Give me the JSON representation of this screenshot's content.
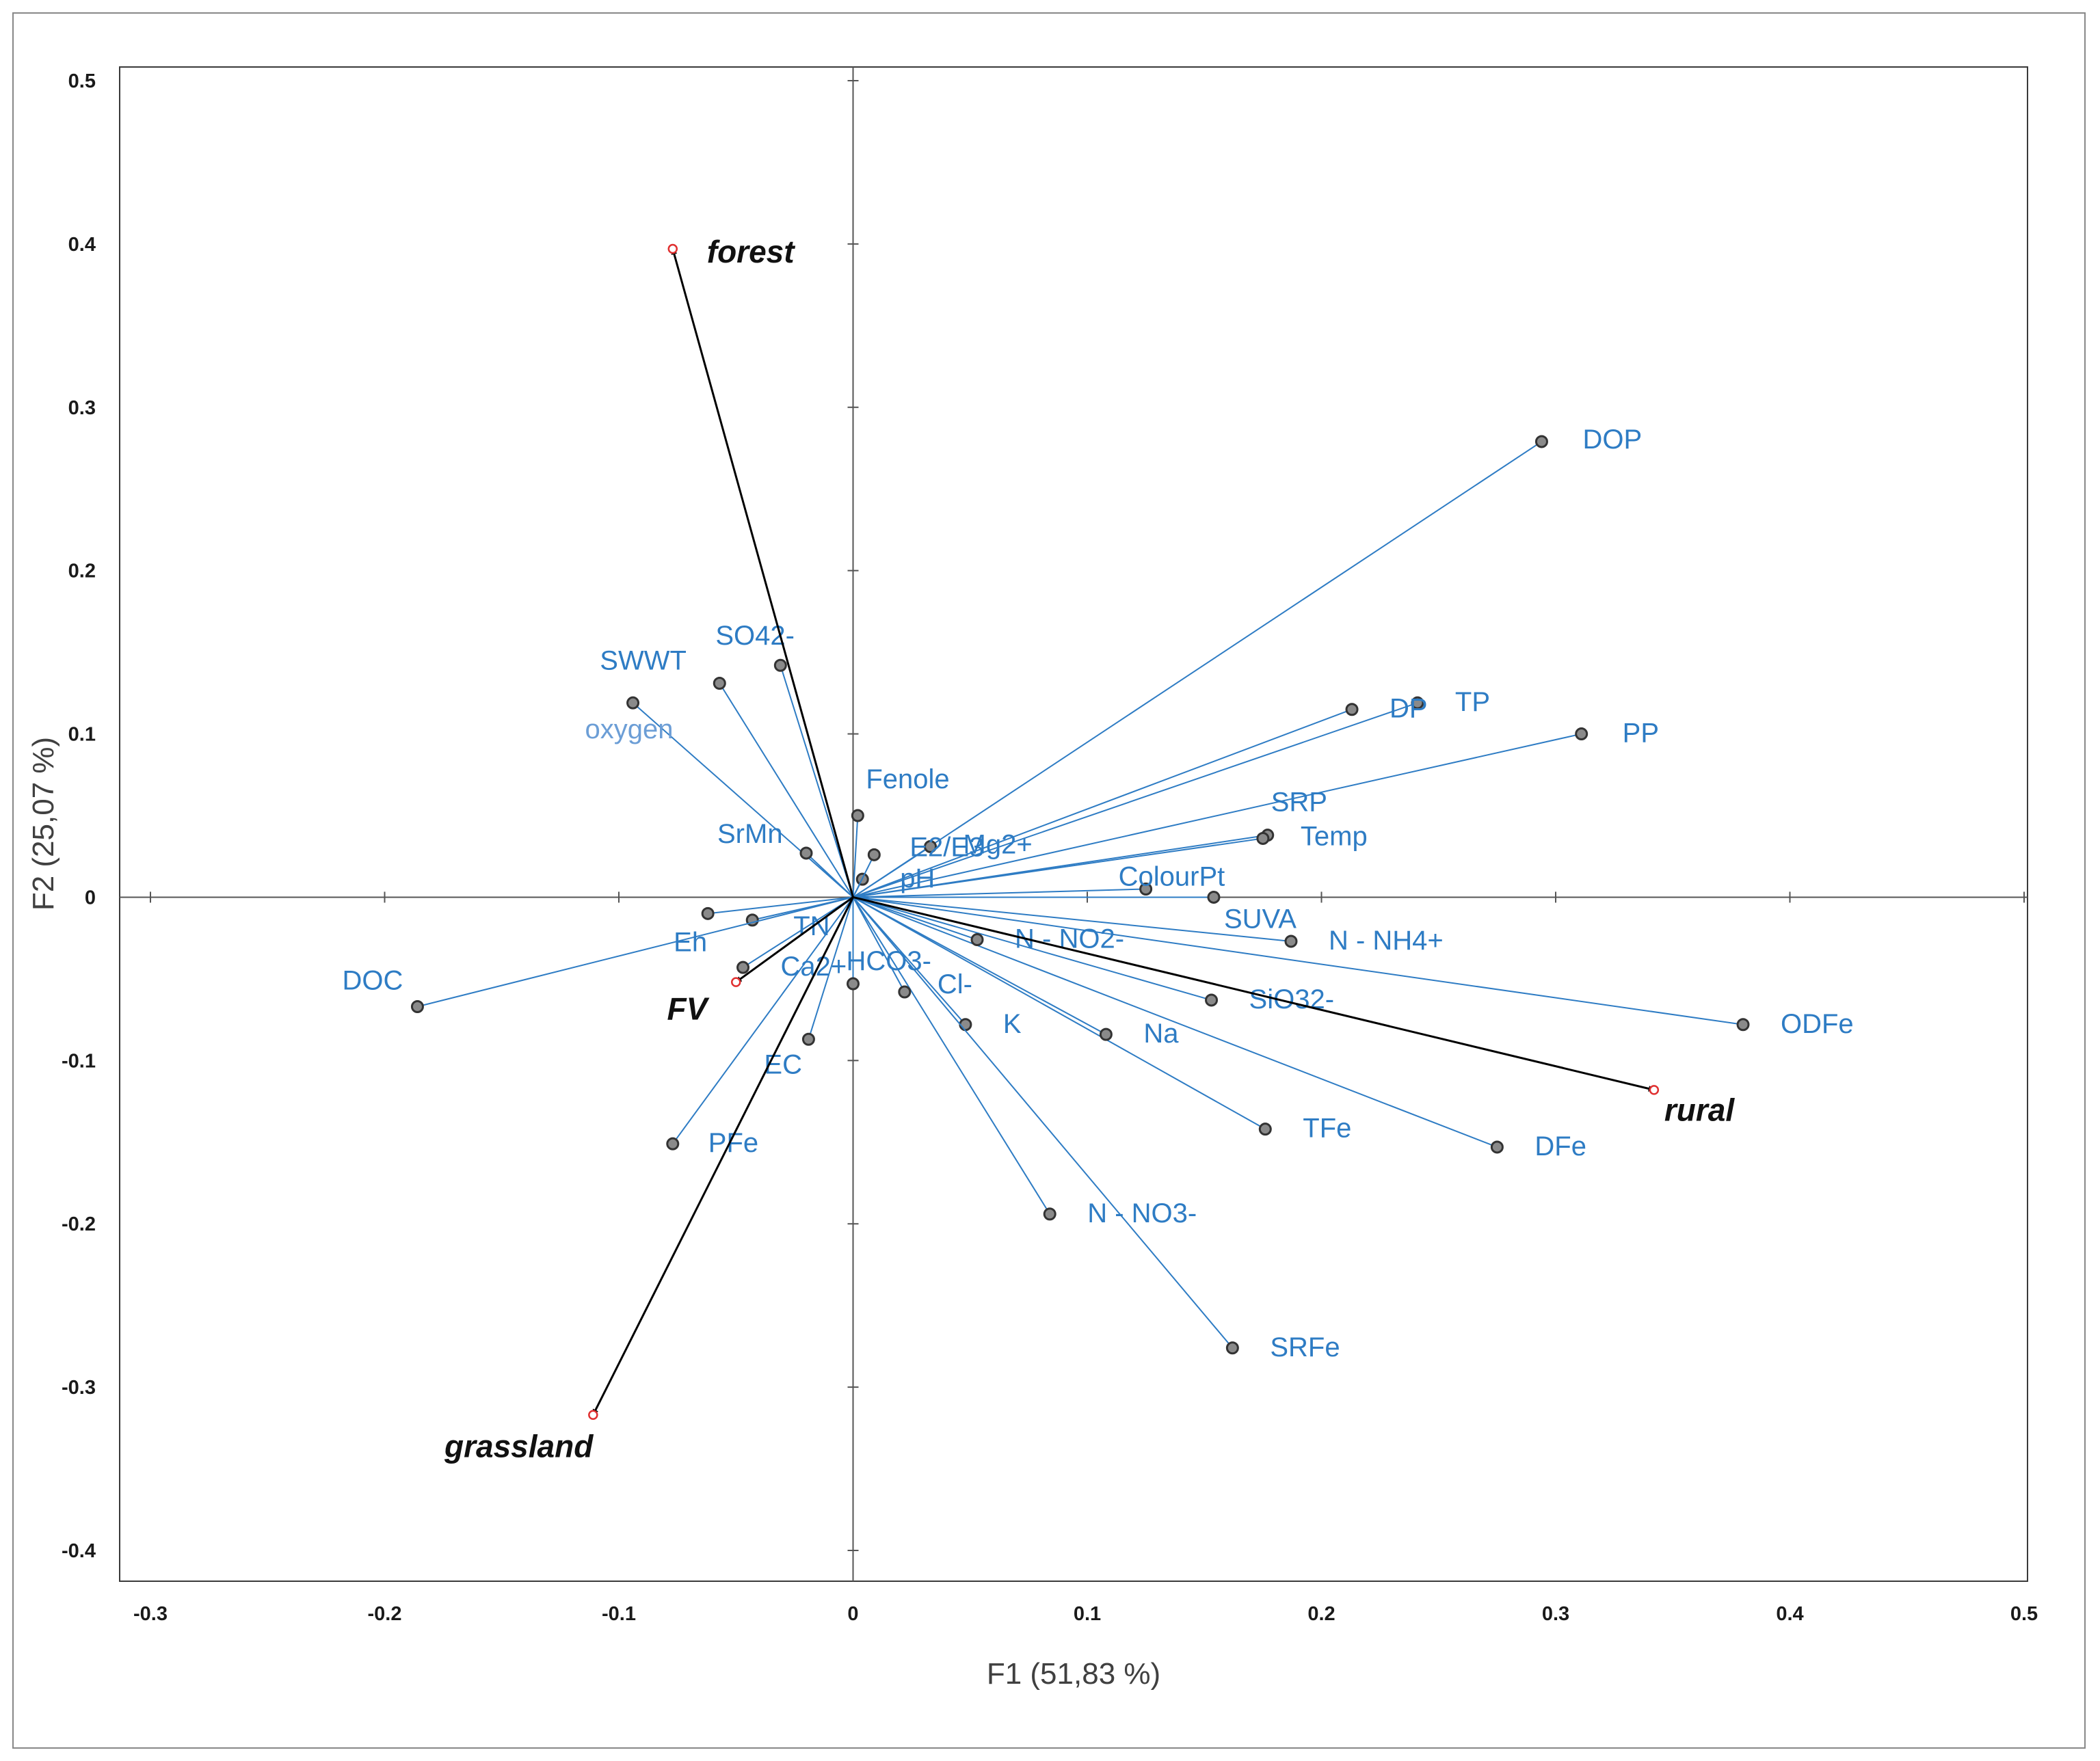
{
  "chart_data": {
    "type": "biplot",
    "title": "",
    "xlabel": "F1 (51,83 %)",
    "ylabel": "F2 (25,07 %)",
    "xlim": [
      -0.3,
      0.5
    ],
    "ylim": [
      -0.4,
      0.5
    ],
    "xticks": [
      -0.3,
      -0.2,
      -0.1,
      0,
      0.1,
      0.2,
      0.3,
      0.4,
      0.5
    ],
    "yticks": [
      -0.4,
      -0.3,
      -0.2,
      -0.1,
      0,
      0.1,
      0.2,
      0.3,
      0.4,
      0.5
    ],
    "xtick_labels": [
      "-0.3",
      "-0.2",
      "-0.1",
      "0",
      "0.1",
      "0.2",
      "0.3",
      "0.4",
      "0.5"
    ],
    "ytick_labels": [
      "-0.4",
      "-0.3",
      "-0.2",
      "-0.1",
      "0",
      "0.1",
      "0.2",
      "0.3",
      "0.4",
      "0.5"
    ],
    "colors": {
      "variables": "#2e7cc4",
      "groups": "#000000",
      "point_fill": "#8a8a8a",
      "group_marker": "#e03030"
    },
    "variables": [
      {
        "name": "DOP",
        "x": 0.294,
        "y": 0.279
      },
      {
        "name": "TP",
        "x": 0.241,
        "y": 0.119
      },
      {
        "name": "DP",
        "x": 0.213,
        "y": 0.115
      },
      {
        "name": "PP",
        "x": 0.311,
        "y": 0.1
      },
      {
        "name": "SRP",
        "x": 0.177,
        "y": 0.038
      },
      {
        "name": "Temp",
        "x": 0.175,
        "y": 0.036
      },
      {
        "name": "ColourPt",
        "x": 0.125,
        "y": 0.005
      },
      {
        "name": "SUVA",
        "x": 0.154,
        "y": 0.0
      },
      {
        "name": "N - NH4+",
        "x": 0.187,
        "y": -0.027
      },
      {
        "name": "ODFe",
        "x": 0.38,
        "y": -0.078
      },
      {
        "name": "SiO32-",
        "x": 0.153,
        "y": -0.063
      },
      {
        "name": "DFe",
        "x": 0.275,
        "y": -0.153
      },
      {
        "name": "TFe",
        "x": 0.176,
        "y": -0.142
      },
      {
        "name": "Na",
        "x": 0.108,
        "y": -0.084
      },
      {
        "name": "K",
        "x": 0.048,
        "y": -0.078
      },
      {
        "name": "N - NO3-",
        "x": 0.084,
        "y": -0.194
      },
      {
        "name": "SRFe",
        "x": 0.162,
        "y": -0.276
      },
      {
        "name": "N - NO2-",
        "x": 0.053,
        "y": -0.026
      },
      {
        "name": "Cl-",
        "x": 0.022,
        "y": -0.058
      },
      {
        "name": "HCO3-",
        "x": 0.0,
        "y": -0.053
      },
      {
        "name": "pH",
        "x": 0.004,
        "y": 0.011
      },
      {
        "name": "Mg2+",
        "x": 0.033,
        "y": 0.031
      },
      {
        "name": "E2/E3",
        "x": 0.009,
        "y": 0.026
      },
      {
        "name": "Fenole",
        "x": 0.002,
        "y": 0.05
      },
      {
        "name": "SO42-",
        "x": -0.031,
        "y": 0.142
      },
      {
        "name": "SWWT",
        "x": -0.057,
        "y": 0.131
      },
      {
        "name": "oxygen",
        "x": -0.094,
        "y": 0.119
      },
      {
        "name": "SrMn",
        "x": -0.02,
        "y": 0.027
      },
      {
        "name": "TN",
        "x": -0.043,
        "y": -0.014
      },
      {
        "name": "Eh",
        "x": -0.062,
        "y": -0.01
      },
      {
        "name": "Ca2+",
        "x": -0.047,
        "y": -0.043
      },
      {
        "name": "EC",
        "x": -0.019,
        "y": -0.087
      },
      {
        "name": "PFe",
        "x": -0.077,
        "y": -0.151
      },
      {
        "name": "DOC",
        "x": -0.186,
        "y": -0.067
      }
    ],
    "groups": [
      {
        "name": "forest",
        "x": -0.077,
        "y": 0.397
      },
      {
        "name": "rural",
        "x": 0.342,
        "y": -0.118
      },
      {
        "name": "grassland",
        "x": -0.111,
        "y": -0.317
      },
      {
        "name": "FV",
        "x": -0.05,
        "y": -0.052
      }
    ]
  }
}
